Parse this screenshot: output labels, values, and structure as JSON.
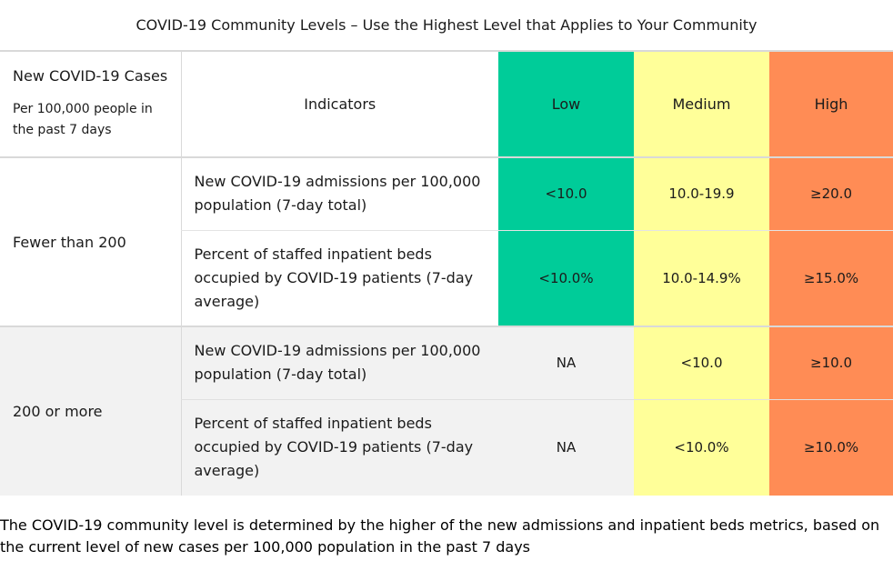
{
  "table": {
    "title": "COVID-19 Community Levels – Use the Highest Level that Applies to Your Community",
    "header": {
      "cases_title": "New COVID-19 Cases",
      "cases_sub": "Per 100,000 people in the past 7 days",
      "indicators": "Indicators",
      "low": "Low",
      "medium": "Medium",
      "high": "High"
    },
    "groups": [
      {
        "cases": "Fewer than 200",
        "rows": [
          {
            "indicator": "New COVID-19 admissions per 100,000 population (7-day total)",
            "low": "<10.0",
            "medium": "10.0-19.9",
            "high": "≥20.0"
          },
          {
            "indicator": "Percent of staffed inpatient beds occupied by COVID-19 patients (7-day average)",
            "low": "<10.0%",
            "medium": "10.0-14.9%",
            "high": "≥15.0%"
          }
        ]
      },
      {
        "cases": "200 or more",
        "rows": [
          {
            "indicator": "New COVID-19 admissions per 100,000 population (7-day total)",
            "low": "NA",
            "medium": "<10.0",
            "high": "≥10.0"
          },
          {
            "indicator": "Percent of staffed inpatient beds occupied by COVID-19 patients (7-day average)",
            "low": "NA",
            "medium": "<10.0%",
            "high": "≥10.0%"
          }
        ]
      }
    ]
  },
  "caption": "The COVID-19 community level is determined by the higher of the new admissions and inpatient beds metrics, based on the current level of new cases per 100,000 population in the past 7 days",
  "colors": {
    "low": "#00cc99",
    "medium": "#ffff99",
    "high": "#ff8c55",
    "gray": "#f2f2f2"
  }
}
